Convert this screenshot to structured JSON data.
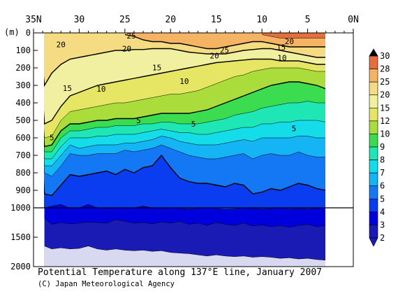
{
  "title": "Potential Temperature along 137°E line, January 2007",
  "credit": "(C) Japan Meteorological Agency",
  "colors": {
    "levels": [
      "#d8d8f0",
      "#1a1ab4",
      "#0000dc",
      "#0a3cf0",
      "#1478f5",
      "#14b4f5",
      "#14dce8",
      "#1ee6b4",
      "#3cdc50",
      "#aadc3c",
      "#e6e664",
      "#f0f0a0",
      "#f5dc82",
      "#f5b464",
      "#e66e3c"
    ]
  },
  "chart_data": {
    "type": "heatmap",
    "title": "Potential Temperature along 137°E line, January 2007",
    "x_ticks": [
      "35N",
      "30",
      "25",
      "20",
      "15",
      "10",
      "5",
      "0N"
    ],
    "y_unit_label": "(m)",
    "y_ticks_upper": [
      "0",
      "100",
      "200",
      "300",
      "400",
      "500",
      "600",
      "700",
      "800",
      "900",
      "1000"
    ],
    "y_ticks_lower": [
      "1500",
      "2000"
    ],
    "xlim": [
      35,
      0
    ],
    "ylim": [
      0,
      2000
    ],
    "axis_break_depth": 1000,
    "colorbar_labels": [
      "30",
      "28",
      "25",
      "20",
      "15",
      "12",
      "10",
      "9",
      "8",
      "7",
      "6",
      "5",
      "4",
      "3",
      "2"
    ],
    "colorbar_levels": [
      2,
      3,
      4,
      5,
      6,
      7,
      8,
      9,
      10,
      12,
      15,
      20,
      25,
      28,
      30
    ],
    "lat": [
      34.3,
      33.8,
      33,
      32,
      31,
      30,
      29,
      28,
      27,
      26,
      25,
      24,
      23,
      22,
      21,
      20,
      19,
      18,
      17,
      16,
      15,
      14,
      13,
      12,
      11,
      10,
      9,
      8,
      7,
      6,
      5,
      4,
      3
    ],
    "isotherm_depths": {
      "2": [
        null,
        1650,
        1700,
        1680,
        1700,
        1690,
        1650,
        1700,
        1720,
        1700,
        1720,
        1730,
        1720,
        1740,
        1730,
        1760,
        1770,
        1780,
        1800,
        1820,
        1800,
        1820,
        1830,
        1820,
        1840,
        1830,
        1840,
        1860,
        1850,
        1870,
        1860,
        1880,
        1890
      ],
      "3": [
        null,
        1180,
        1280,
        1250,
        1270,
        1260,
        1240,
        1250,
        1260,
        1200,
        1230,
        1260,
        1250,
        1270,
        1240,
        1260,
        1230,
        1280,
        1260,
        1300,
        1250,
        1280,
        1300,
        1260,
        1310,
        1290,
        1320,
        1300,
        1330,
        1300,
        1280,
        1320,
        1300
      ],
      "4": [
        900,
        1000,
        990,
        980,
        1010,
        1000,
        980,
        1000,
        1010,
        1000,
        1010,
        1000,
        990,
        1000,
        1010,
        1000,
        1010,
        1020,
        1010,
        1000,
        1010,
        1030,
        1020,
        1000,
        1010,
        1020,
        1010,
        1000,
        1020,
        1010,
        1020,
        1010,
        1000
      ],
      "5": [
        500,
        920,
        930,
        870,
        810,
        820,
        810,
        800,
        790,
        810,
        780,
        800,
        770,
        760,
        700,
        770,
        830,
        850,
        860,
        860,
        870,
        880,
        860,
        870,
        920,
        910,
        890,
        900,
        880,
        860,
        870,
        890,
        900
      ],
      "6": [
        400,
        800,
        820,
        760,
        690,
        700,
        700,
        690,
        690,
        690,
        670,
        680,
        670,
        660,
        640,
        660,
        680,
        700,
        710,
        720,
        720,
        710,
        700,
        690,
        720,
        700,
        690,
        700,
        700,
        680,
        700,
        710,
        710
      ],
      "7": [
        360,
        760,
        760,
        700,
        640,
        660,
        650,
        640,
        640,
        640,
        630,
        630,
        620,
        610,
        590,
        600,
        620,
        630,
        640,
        640,
        640,
        630,
        620,
        610,
        620,
        600,
        600,
        600,
        600,
        590,
        590,
        600,
        600
      ],
      "8": [
        320,
        720,
        720,
        650,
        600,
        600,
        600,
        590,
        590,
        580,
        580,
        580,
        570,
        560,
        550,
        560,
        570,
        570,
        580,
        580,
        570,
        560,
        550,
        540,
        540,
        520,
        520,
        510,
        510,
        500,
        500,
        500,
        510
      ],
      "9": [
        280,
        680,
        680,
        600,
        560,
        560,
        550,
        540,
        540,
        530,
        530,
        530,
        520,
        520,
        510,
        510,
        520,
        520,
        520,
        510,
        500,
        490,
        470,
        460,
        450,
        430,
        420,
        410,
        400,
        400,
        390,
        400,
        400
      ],
      "10": [
        250,
        650,
        640,
        560,
        520,
        520,
        510,
        500,
        500,
        490,
        490,
        490,
        480,
        470,
        460,
        460,
        460,
        460,
        450,
        440,
        420,
        400,
        380,
        360,
        340,
        320,
        300,
        290,
        280,
        280,
        290,
        300,
        320
      ],
      "12": [
        200,
        600,
        590,
        500,
        450,
        440,
        430,
        420,
        410,
        400,
        400,
        390,
        380,
        370,
        360,
        350,
        350,
        340,
        330,
        310,
        290,
        270,
        250,
        240,
        220,
        210,
        200,
        200,
        200,
        200,
        210,
        220,
        220
      ],
      "15": [
        150,
        520,
        500,
        420,
        360,
        340,
        320,
        300,
        290,
        280,
        270,
        260,
        250,
        240,
        230,
        220,
        210,
        200,
        190,
        180,
        170,
        165,
        160,
        155,
        150,
        150,
        150,
        160,
        160,
        160,
        170,
        180,
        180
      ],
      "20": [
        50,
        300,
        230,
        180,
        150,
        140,
        130,
        120,
        110,
        100,
        100,
        95,
        95,
        90,
        90,
        90,
        100,
        110,
        115,
        120,
        120,
        120,
        110,
        100,
        95,
        90,
        90,
        100,
        110,
        120,
        130,
        140,
        140
      ],
      "25": [
        null,
        null,
        null,
        null,
        null,
        null,
        null,
        null,
        null,
        null,
        10,
        20,
        40,
        50,
        50,
        60,
        60,
        70,
        80,
        90,
        90,
        80,
        70,
        60,
        50,
        50,
        60,
        70,
        80,
        80,
        80,
        80,
        80
      ],
      "28": [
        null,
        null,
        null,
        null,
        null,
        null,
        null,
        null,
        null,
        null,
        null,
        null,
        null,
        null,
        null,
        null,
        null,
        null,
        null,
        null,
        null,
        null,
        null,
        null,
        null,
        10,
        20,
        30,
        30,
        30,
        30,
        30,
        30
      ]
    },
    "contour_labels": [
      {
        "text": "25",
        "lat": 24.3,
        "depth": 30
      },
      {
        "text": "20",
        "lat": 32.0,
        "depth": 130
      },
      {
        "text": "20",
        "lat": 24.8,
        "depth": 180
      },
      {
        "text": "25",
        "lat": 14.1,
        "depth": 195
      },
      {
        "text": "15",
        "lat": 7.9,
        "depth": 165
      },
      {
        "text": "20",
        "lat": 7.0,
        "depth": 95
      },
      {
        "text": "20",
        "lat": 15.2,
        "depth": 260
      },
      {
        "text": "10",
        "lat": 7.8,
        "depth": 285
      },
      {
        "text": "15",
        "lat": 21.5,
        "depth": 395
      },
      {
        "text": "10",
        "lat": 18.5,
        "depth": 550
      },
      {
        "text": "15",
        "lat": 31.3,
        "depth": 630
      },
      {
        "text": "10",
        "lat": 27.6,
        "depth": 640
      },
      {
        "text": "5",
        "lat": 23.5,
        "depth": 1000
      },
      {
        "text": "5",
        "lat": 17.5,
        "depth": 1040
      },
      {
        "text": "5",
        "lat": 6.5,
        "depth": 1090
      },
      {
        "text": "5",
        "lat": 33.0,
        "depth": 1195
      }
    ]
  }
}
